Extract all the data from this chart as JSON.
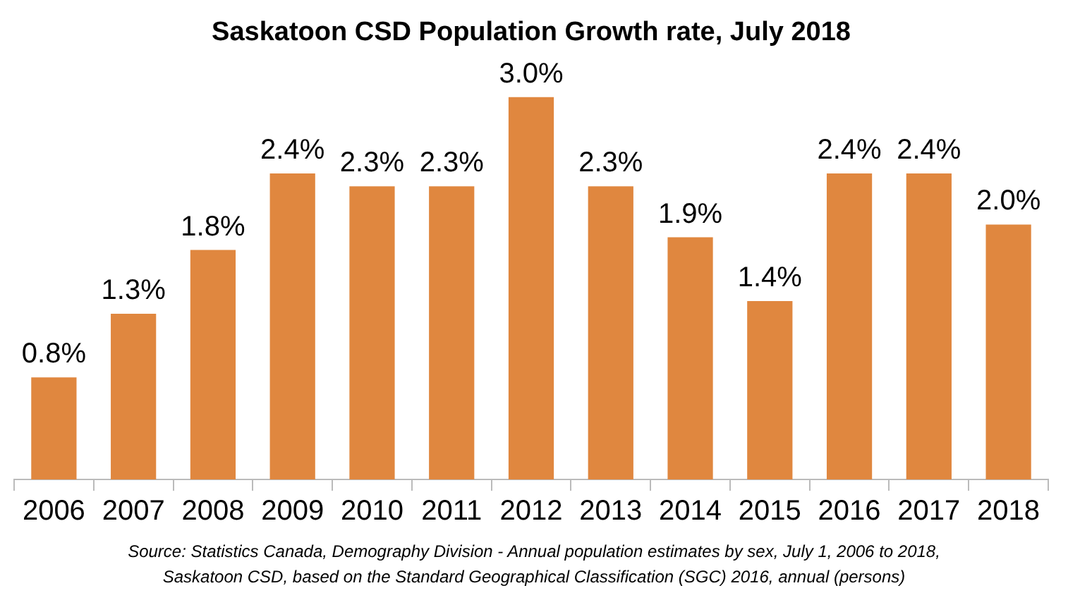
{
  "chart_data": {
    "type": "bar",
    "title": "Saskatoon CSD Population Growth rate, July 2018",
    "categories": [
      "2006",
      "2007",
      "2008",
      "2009",
      "2010",
      "2011",
      "2012",
      "2013",
      "2014",
      "2015",
      "2016",
      "2017",
      "2018"
    ],
    "values": [
      0.8,
      1.3,
      1.8,
      2.4,
      2.3,
      2.3,
      3.0,
      2.3,
      1.9,
      1.4,
      2.4,
      2.4,
      2.0
    ],
    "value_labels": [
      "0.8%",
      "1.3%",
      "1.8%",
      "2.4%",
      "2.3%",
      "2.3%",
      "3.0%",
      "2.3%",
      "1.9%",
      "1.4%",
      "2.4%",
      "2.4%",
      "2.0%"
    ],
    "color": "#e0873f",
    "annotations": [
      "Source: Statistics Canada, Demography Division - Annual population estimates by sex, July 1, 2006 to 2018, Saskatoon CSD, based on the Standard Geographical Classification (SGC) 2016, annual (persons)"
    ]
  }
}
